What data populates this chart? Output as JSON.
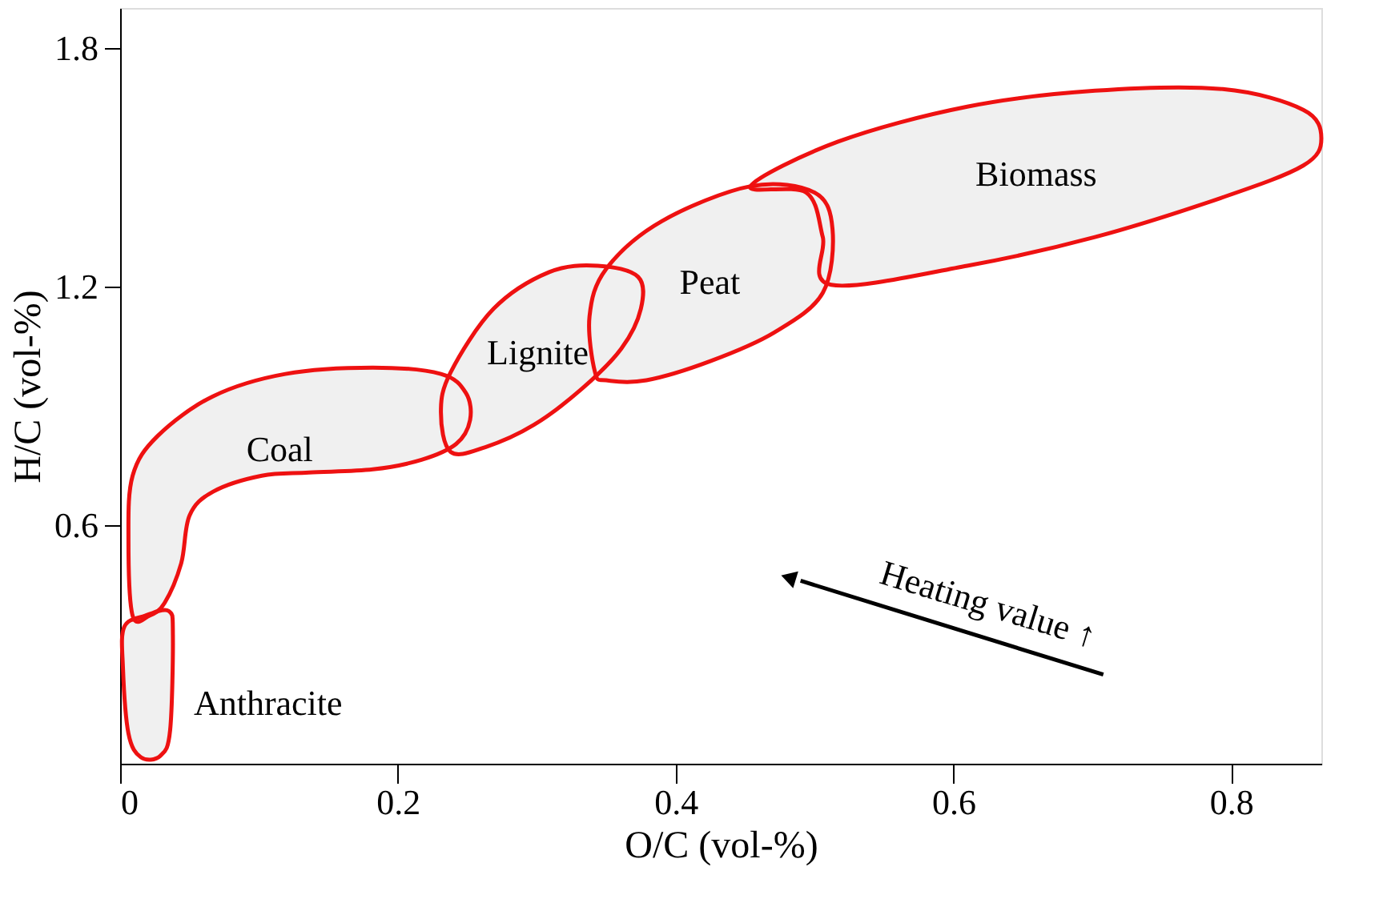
{
  "chart_data": {
    "type": "area",
    "xlabel": "O/C  (vol-%)",
    "ylabel": "H/C  (vol-%)",
    "xlim": [
      0,
      0.865
    ],
    "ylim": [
      0,
      1.9
    ],
    "xticks": [
      0,
      0.2,
      0.4,
      0.6,
      0.8
    ],
    "yticks": [
      0.6,
      1.2,
      1.8
    ],
    "grid": false,
    "legend": false,
    "marker": "none",
    "series": [
      {
        "name": "Anthracite",
        "color": "#ee1111",
        "x": [
          0.003,
          0.018,
          0.035,
          0.038,
          0.036,
          0.029,
          0.015,
          0.006,
          0.002
        ],
        "values": [
          0.344,
          0.372,
          0.384,
          0.324,
          0.084,
          0.02,
          0.016,
          0.076,
          0.244
        ]
      },
      {
        "name": "Coal",
        "color": "#ee1111",
        "x": [
          0.009,
          0.006,
          0.009,
          0.027,
          0.067,
          0.119,
          0.182,
          0.231,
          0.249,
          0.252,
          0.242,
          0.217,
          0.182,
          0.136,
          0.102,
          0.067,
          0.05,
          0.044,
          0.032,
          0.021
        ],
        "values": [
          0.372,
          0.564,
          0.724,
          0.824,
          0.924,
          0.98,
          0.996,
          0.98,
          0.932,
          0.864,
          0.804,
          0.764,
          0.74,
          0.732,
          0.724,
          0.684,
          0.624,
          0.504,
          0.404,
          0.372
        ]
      },
      {
        "name": "Lignite",
        "color": "#ee1111",
        "x": [
          0.238,
          0.231,
          0.238,
          0.269,
          0.309,
          0.344,
          0.373,
          0.375,
          0.361,
          0.333,
          0.298,
          0.263
        ],
        "values": [
          0.784,
          0.884,
          0.984,
          1.144,
          1.236,
          1.252,
          1.224,
          1.144,
          1.044,
          0.944,
          0.852,
          0.796
        ]
      },
      {
        "name": "Peat",
        "color": "#ee1111",
        "x": [
          0.342,
          0.338,
          0.35,
          0.39,
          0.454,
          0.5,
          0.513,
          0.506,
          0.471,
          0.425,
          0.379,
          0.35
        ],
        "values": [
          0.984,
          1.124,
          1.244,
          1.364,
          1.452,
          1.436,
          1.344,
          1.184,
          1.084,
          1.012,
          0.964,
          0.964
        ]
      },
      {
        "name": "Biomass",
        "color": "#ee1111",
        "x": [
          0.454,
          0.517,
          0.61,
          0.702,
          0.794,
          0.852,
          0.865,
          0.852,
          0.794,
          0.702,
          0.61,
          0.512,
          0.506,
          0.494
        ],
        "values": [
          1.452,
          1.564,
          1.652,
          1.692,
          1.696,
          1.644,
          1.572,
          1.504,
          1.424,
          1.324,
          1.252,
          1.204,
          1.324,
          1.436
        ]
      }
    ],
    "annotations": [
      "Heating value ↑"
    ]
  }
}
